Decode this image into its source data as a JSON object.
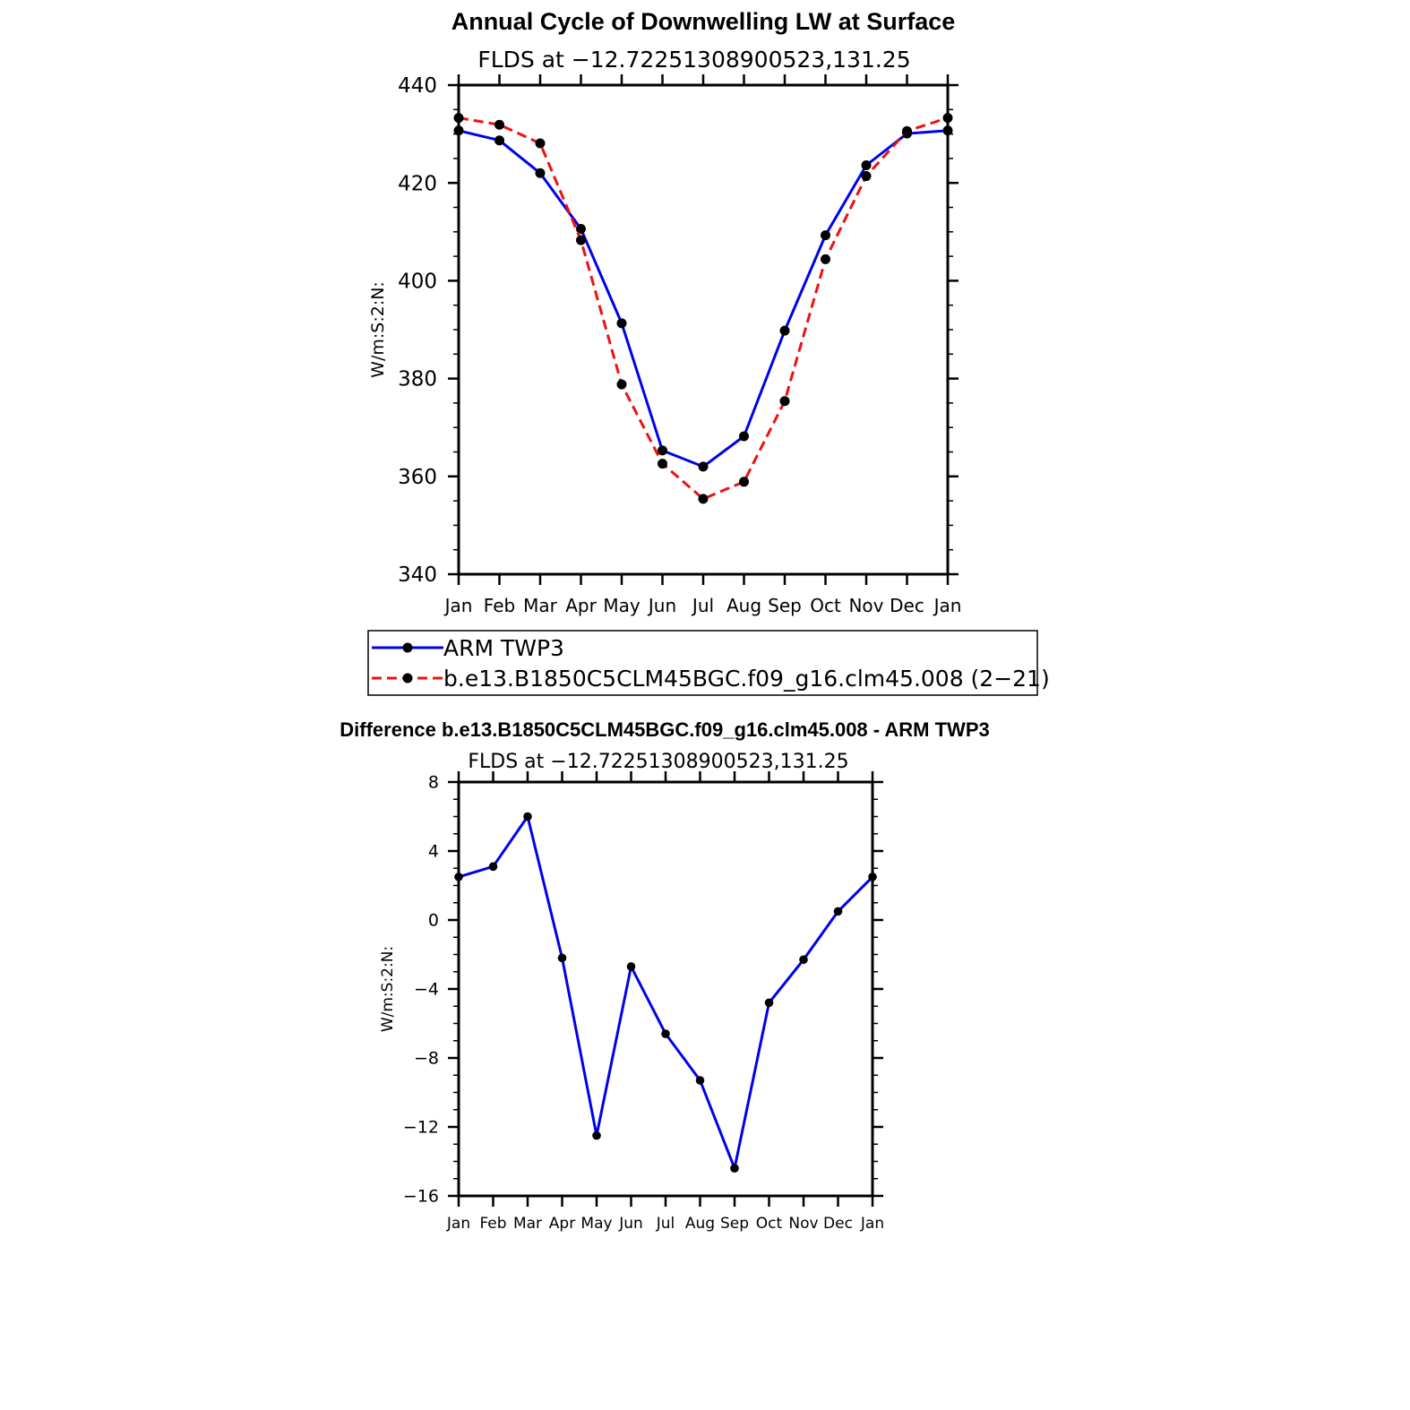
{
  "chart_data": [
    {
      "type": "line",
      "title": "Annual Cycle of Downwelling LW at Surface",
      "subtitle": "FLDS at −12.72251308900523,131.25",
      "xlabel": "",
      "ylabel": "W/m:S:2:N:",
      "ylim": [
        340,
        440
      ],
      "yticks": [
        340,
        360,
        380,
        400,
        420,
        440
      ],
      "categories": [
        "Jan",
        "Feb",
        "Mar",
        "Apr",
        "May",
        "Jun",
        "Jul",
        "Aug",
        "Sep",
        "Oct",
        "Nov",
        "Dec",
        "Jan"
      ],
      "grid": false,
      "legend_position": "bottom",
      "series": [
        {
          "name": "ARM TWP3",
          "color": "#0000ee",
          "dash": "solid",
          "values": [
            430.7,
            428.7,
            422.0,
            410.6,
            391.3,
            365.3,
            362.0,
            368.2,
            389.8,
            409.3,
            423.6,
            430.1,
            430.7
          ]
        },
        {
          "name": "b.e13.B1850C5CLM45BGC.f09_g16.clm45.008 (2−21)",
          "color": "#ee1111",
          "dash": "dashed",
          "values": [
            433.3,
            431.9,
            428.1,
            408.3,
            378.8,
            362.6,
            355.4,
            358.9,
            375.4,
            404.4,
            421.4,
            430.6,
            433.3
          ]
        }
      ]
    },
    {
      "type": "line",
      "title": "Difference b.e13.B1850C5CLM45BGC.f09_g16.clm45.008 - ARM TWP3",
      "subtitle": "FLDS at −12.72251308900523,131.25",
      "xlabel": "",
      "ylabel": "W/m:S:2:N:",
      "ylim": [
        -16,
        8
      ],
      "yticks": [
        -16,
        -12,
        -8,
        -4,
        0,
        4,
        8
      ],
      "categories": [
        "Jan",
        "Feb",
        "Mar",
        "Apr",
        "May",
        "Jun",
        "Jul",
        "Aug",
        "Sep",
        "Oct",
        "Nov",
        "Dec",
        "Jan"
      ],
      "grid": false,
      "series": [
        {
          "color": "#0000ee",
          "dash": "solid",
          "values": [
            2.5,
            3.1,
            6.0,
            -2.2,
            -12.5,
            -2.7,
            -6.6,
            -9.3,
            -14.4,
            -4.8,
            -2.3,
            0.5,
            2.5
          ]
        }
      ]
    }
  ]
}
